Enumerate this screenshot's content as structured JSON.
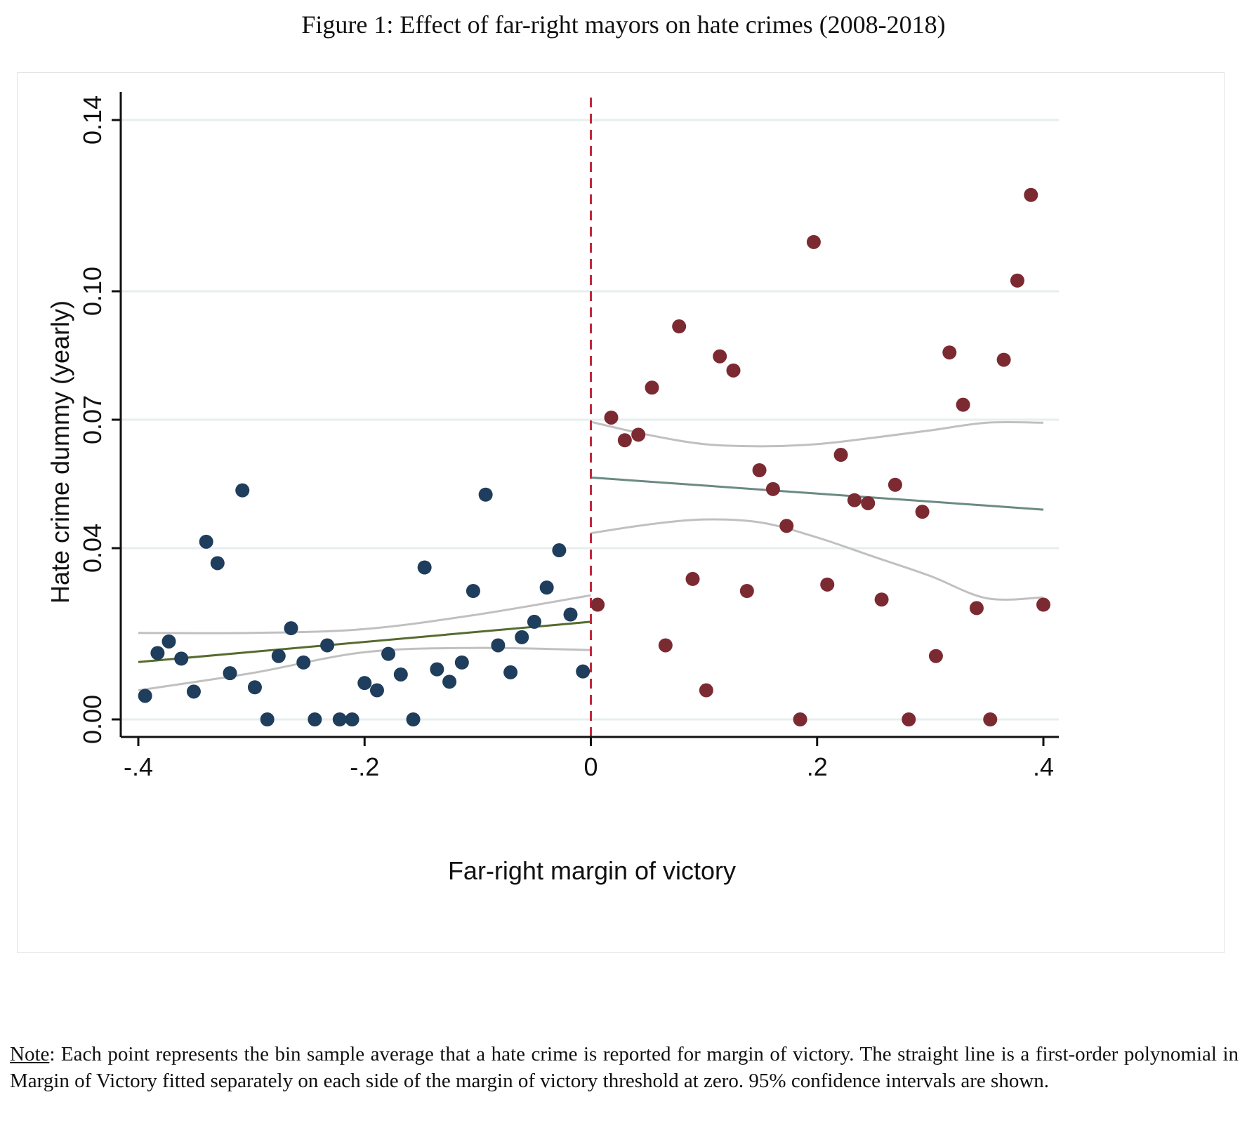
{
  "figure": {
    "title": "Figure 1: Effect of far-right mayors on hate crimes (2008-2018)"
  },
  "note": {
    "label": "Note",
    "text": ": Each point represents the bin sample average that a hate crime is reported for margin of victory. The straight line is a first-order polynomial in Margin of Victory fitted separately on each side of the margin of victory threshold at zero. 95% confidence intervals are shown."
  },
  "chart_data": {
    "type": "scatter",
    "title": "",
    "xlabel": "Far-right margin of victory",
    "ylabel": "Hate crime dummy (yearly)",
    "xlim": [
      -0.4,
      0.4
    ],
    "ylim": [
      0,
      0.14
    ],
    "x_ticks": [
      -0.4,
      -0.2,
      0,
      0.2,
      0.4
    ],
    "x_tick_labels": [
      "-.4",
      "-.2",
      "0",
      ".2",
      ".4"
    ],
    "y_ticks": [
      0,
      0.04,
      0.07,
      0.1,
      0.14
    ],
    "y_tick_labels": [
      "0.00",
      "0.04",
      "0.07",
      "0.10",
      "0.14"
    ],
    "grid": true,
    "threshold_x": 0,
    "colors": {
      "left_points": "#1f3d5c",
      "right_points": "#7c2a32",
      "left_fit": "#556b2f",
      "right_fit": "#6b8a84",
      "ci": "#c0c0c0",
      "threshold": "#c0283b",
      "grid": "#e6eeee"
    },
    "series": [
      {
        "side": "left",
        "points": [
          [
            -0.394,
            0.0055
          ],
          [
            -0.383,
            0.0155
          ],
          [
            -0.373,
            0.0182
          ],
          [
            -0.362,
            0.0142
          ],
          [
            -0.351,
            0.0065
          ],
          [
            -0.34,
            0.0415
          ],
          [
            -0.33,
            0.0365
          ],
          [
            -0.319,
            0.0108
          ],
          [
            -0.308,
            0.0535
          ],
          [
            -0.297,
            0.0075
          ],
          [
            -0.286,
            0.0
          ],
          [
            -0.276,
            0.0148
          ],
          [
            -0.265,
            0.0213
          ],
          [
            -0.254,
            0.0133
          ],
          [
            -0.244,
            0.0
          ],
          [
            -0.233,
            0.0173
          ],
          [
            -0.222,
            0.0
          ],
          [
            -0.211,
            0.0
          ],
          [
            -0.2,
            0.0085
          ],
          [
            -0.189,
            0.0068
          ],
          [
            -0.179,
            0.0153
          ],
          [
            -0.168,
            0.0105
          ],
          [
            -0.157,
            0.0
          ],
          [
            -0.147,
            0.0355
          ],
          [
            -0.136,
            0.0117
          ],
          [
            -0.125,
            0.0088
          ],
          [
            -0.114,
            0.0133
          ],
          [
            -0.104,
            0.03
          ],
          [
            -0.093,
            0.0525
          ],
          [
            -0.082,
            0.0173
          ],
          [
            -0.071,
            0.011
          ],
          [
            -0.061,
            0.0192
          ],
          [
            -0.05,
            0.0228
          ],
          [
            -0.039,
            0.0308
          ],
          [
            -0.028,
            0.0395
          ],
          [
            -0.018,
            0.0245
          ],
          [
            -0.007,
            0.0112
          ]
        ],
        "fit": {
          "x": [
            -0.4,
            0
          ],
          "y": [
            0.0134,
            0.0228
          ]
        },
        "ci_upper": [
          [
            -0.4,
            0.0202
          ],
          [
            -0.3,
            0.0202
          ],
          [
            -0.2,
            0.0211
          ],
          [
            -0.1,
            0.0245
          ],
          [
            0,
            0.029
          ]
        ],
        "ci_lower": [
          [
            -0.4,
            0.0068
          ],
          [
            -0.3,
            0.0108
          ],
          [
            -0.2,
            0.0157
          ],
          [
            -0.1,
            0.0167
          ],
          [
            0,
            0.0162
          ]
        ]
      },
      {
        "side": "right",
        "points": [
          [
            0.006,
            0.0268
          ],
          [
            0.018,
            0.0705
          ],
          [
            0.03,
            0.0652
          ],
          [
            0.042,
            0.0665
          ],
          [
            0.054,
            0.0775
          ],
          [
            0.066,
            0.0173
          ],
          [
            0.078,
            0.0918
          ],
          [
            0.09,
            0.0328
          ],
          [
            0.102,
            0.0068
          ],
          [
            0.114,
            0.0848
          ],
          [
            0.126,
            0.0815
          ],
          [
            0.138,
            0.03
          ],
          [
            0.149,
            0.0582
          ],
          [
            0.161,
            0.0538
          ],
          [
            0.173,
            0.0452
          ],
          [
            0.185,
            0.0
          ],
          [
            0.197,
            0.1115
          ],
          [
            0.209,
            0.0315
          ],
          [
            0.221,
            0.0618
          ],
          [
            0.233,
            0.0512
          ],
          [
            0.245,
            0.0505
          ],
          [
            0.257,
            0.028
          ],
          [
            0.269,
            0.0548
          ],
          [
            0.281,
            0.0
          ],
          [
            0.293,
            0.0485
          ],
          [
            0.305,
            0.0148
          ],
          [
            0.317,
            0.0857
          ],
          [
            0.329,
            0.0735
          ],
          [
            0.341,
            0.026
          ],
          [
            0.353,
            0.0
          ],
          [
            0.365,
            0.084
          ],
          [
            0.377,
            0.1025
          ],
          [
            0.389,
            0.1225
          ],
          [
            0.4,
            0.0268
          ]
        ],
        "fit": {
          "x": [
            0,
            0.4
          ],
          "y": [
            0.0565,
            0.049
          ]
        },
        "ci_upper": [
          [
            0,
            0.0695
          ],
          [
            0.05,
            0.0665
          ],
          [
            0.1,
            0.0643
          ],
          [
            0.15,
            0.0638
          ],
          [
            0.2,
            0.0643
          ],
          [
            0.25,
            0.0658
          ],
          [
            0.3,
            0.0675
          ],
          [
            0.35,
            0.0693
          ],
          [
            0.4,
            0.0693
          ]
        ],
        "ci_lower": [
          [
            0,
            0.0435
          ],
          [
            0.05,
            0.0455
          ],
          [
            0.1,
            0.0467
          ],
          [
            0.15,
            0.046
          ],
          [
            0.2,
            0.0425
          ],
          [
            0.25,
            0.038
          ],
          [
            0.3,
            0.0335
          ],
          [
            0.35,
            0.0283
          ],
          [
            0.4,
            0.0285
          ]
        ]
      }
    ]
  }
}
